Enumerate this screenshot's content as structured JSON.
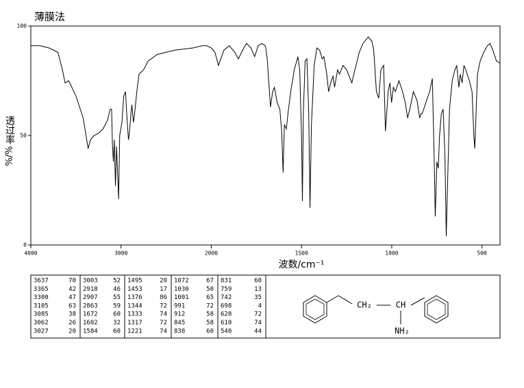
{
  "chart_data": {
    "type": "line",
    "title": "薄膜法",
    "xlabel": "波数/cm⁻¹",
    "ylabel": "透过率",
    "ylabel_unit": "%/%",
    "xlim": [
      4000,
      400
    ],
    "xticks": [
      4000,
      3000,
      2000,
      1500,
      1000,
      500
    ],
    "ylim": [
      0,
      100
    ],
    "yticks": [
      0,
      50,
      100
    ],
    "color": "#000000",
    "x": [
      4000,
      3900,
      3800,
      3700,
      3650,
      3620,
      3580,
      3500,
      3420,
      3380,
      3365,
      3340,
      3300,
      3250,
      3200,
      3150,
      3120,
      3105,
      3095,
      3085,
      3075,
      3062,
      3050,
      3035,
      3027,
      3015,
      3003,
      2990,
      2970,
      2950,
      2940,
      2918,
      2910,
      2890,
      2880,
      2863,
      2850,
      2820,
      2800,
      2750,
      2700,
      2600,
      2500,
      2400,
      2300,
      2200,
      2100,
      2050,
      2000,
      1980,
      1960,
      1930,
      1900,
      1870,
      1850,
      1820,
      1805,
      1780,
      1760,
      1740,
      1720,
      1700,
      1690,
      1672,
      1660,
      1650,
      1635,
      1620,
      1610,
      1602,
      1595,
      1584,
      1575,
      1560,
      1540,
      1520,
      1510,
      1500,
      1495,
      1490,
      1480,
      1470,
      1460,
      1453,
      1445,
      1430,
      1415,
      1400,
      1385,
      1376,
      1360,
      1350,
      1344,
      1335,
      1325,
      1317,
      1300,
      1290,
      1270,
      1250,
      1221,
      1210,
      1180,
      1160,
      1130,
      1110,
      1100,
      1085,
      1072,
      1060,
      1045,
      1035,
      1020,
      1010,
      1001,
      991,
      980,
      960,
      940,
      925,
      912,
      900,
      880,
      860,
      845,
      838,
      831,
      815,
      790,
      775,
      765,
      759,
      750,
      742,
      735,
      725,
      715,
      705,
      698,
      690,
      680,
      665,
      650,
      640,
      628,
      620,
      610,
      600,
      590,
      570,
      555,
      545,
      540,
      535,
      525,
      510,
      490,
      470,
      455,
      440,
      420,
      400
    ],
    "values": [
      91,
      91,
      90,
      88,
      80,
      74,
      75,
      68,
      58,
      48,
      44,
      48,
      50,
      51,
      53,
      57,
      62,
      62,
      45,
      38,
      48,
      27,
      45,
      30,
      21,
      50,
      53,
      56,
      68,
      70,
      62,
      48,
      50,
      60,
      64,
      56,
      60,
      72,
      78,
      80,
      84,
      87,
      88,
      89,
      89.5,
      90,
      91,
      91,
      90,
      88,
      82,
      89,
      91,
      88,
      85,
      90,
      92,
      90,
      86,
      91,
      92,
      91,
      85,
      63,
      70,
      72,
      65,
      62,
      52,
      33,
      55,
      53,
      60,
      70,
      80,
      86,
      80,
      50,
      20,
      60,
      84,
      85,
      60,
      17,
      55,
      82,
      90,
      89,
      85,
      86,
      78,
      70,
      72,
      75,
      77,
      72,
      80,
      78,
      82,
      80,
      74,
      78,
      88,
      92,
      95,
      93,
      89,
      70,
      67,
      80,
      82,
      52,
      70,
      74,
      65,
      72,
      70,
      75,
      70,
      65,
      58,
      62,
      70,
      66,
      58,
      60,
      60,
      64,
      70,
      76,
      40,
      13,
      38,
      35,
      50,
      60,
      62,
      40,
      4,
      30,
      62,
      75,
      80,
      82,
      72,
      78,
      74,
      82,
      80,
      75,
      70,
      50,
      44,
      55,
      78,
      84,
      88,
      91,
      92,
      89,
      84,
      83
    ]
  },
  "peak_table": [
    [
      [
        3637,
        70
      ],
      [
        3365,
        42
      ],
      [
        3300,
        47
      ],
      [
        3105,
        63
      ],
      [
        3085,
        38
      ],
      [
        3062,
        26
      ],
      [
        3027,
        20
      ]
    ],
    [
      [
        3003,
        52
      ],
      [
        2918,
        46
      ],
      [
        2907,
        55
      ],
      [
        2863,
        59
      ],
      [
        1672,
        60
      ],
      [
        1602,
        32
      ],
      [
        1584,
        60
      ]
    ],
    [
      [
        1495,
        20
      ],
      [
        1453,
        17
      ],
      [
        1376,
        86
      ],
      [
        1344,
        72
      ],
      [
        1333,
        74
      ],
      [
        1317,
        72
      ],
      [
        1221,
        74
      ]
    ],
    [
      [
        1072,
        67
      ],
      [
        1030,
        50
      ],
      [
        1001,
        65
      ],
      [
        991,
        72
      ],
      [
        912,
        58
      ],
      [
        845,
        58
      ],
      [
        838,
        60
      ]
    ],
    [
      [
        831,
        60
      ],
      [
        759,
        13
      ],
      [
        742,
        35
      ],
      [
        698,
        4
      ],
      [
        628,
        72
      ],
      [
        610,
        74
      ],
      [
        540,
        44
      ]
    ]
  ],
  "structure": {
    "ch2": "CH₂",
    "ch": "CH",
    "nh2": "NH₂"
  }
}
